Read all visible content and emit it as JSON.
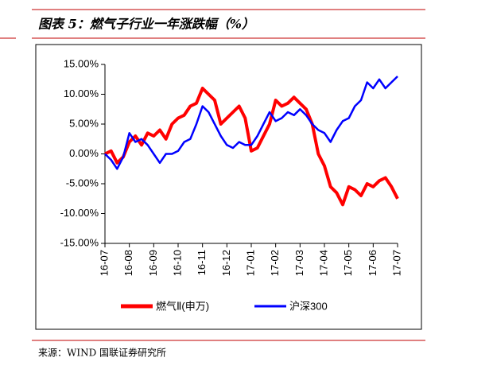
{
  "title": "图表 5：燃气子行业一年涨跌幅（%）",
  "source": "来源：WIND 国联证券研究所",
  "chart_data": {
    "type": "line",
    "x": [
      0,
      0.25,
      0.5,
      0.75,
      1,
      1.25,
      1.5,
      1.75,
      2,
      2.25,
      2.5,
      2.75,
      3,
      3.25,
      3.5,
      3.75,
      4,
      4.25,
      4.5,
      4.75,
      5,
      5.25,
      5.5,
      5.75,
      6,
      6.25,
      6.5,
      6.75,
      7,
      7.25,
      7.5,
      7.75,
      8,
      8.25,
      8.5,
      8.75,
      9,
      9.25,
      9.5,
      9.75,
      10,
      10.25,
      10.5,
      10.75,
      11,
      11.25,
      11.5,
      11.75,
      12
    ],
    "series": [
      {
        "name": "燃气Ⅱ(申万)",
        "color": "#ff0000",
        "values": [
          0,
          0.5,
          -1.5,
          -0.5,
          2,
          3,
          1.5,
          3.5,
          3,
          4,
          2.5,
          5,
          6,
          6.5,
          8,
          8.5,
          11,
          10,
          9,
          5,
          6,
          7,
          8,
          6,
          0.5,
          1,
          3,
          5,
          9,
          8,
          8.5,
          9.5,
          8.5,
          7.5,
          5,
          0,
          -2,
          -5.5,
          -6.5,
          -8.5,
          -5.5,
          -6,
          -7,
          -5,
          -5.5,
          -4.5,
          -4,
          -5.5,
          -7.5
        ]
      },
      {
        "name": "沪深300",
        "color": "#0000ff",
        "values": [
          0,
          -1,
          -2.5,
          -0.5,
          3.5,
          2,
          2.5,
          1.5,
          0,
          -1.5,
          0,
          0,
          0.5,
          2,
          2.5,
          5,
          8,
          7,
          5,
          3,
          1.5,
          1,
          2,
          1.5,
          1.5,
          3,
          5,
          7,
          5.5,
          6,
          7,
          6.5,
          7.5,
          6.5,
          5,
          4,
          3.5,
          2,
          4,
          5.5,
          6,
          8,
          9,
          12,
          11,
          12.5,
          11,
          12,
          13
        ]
      }
    ],
    "xlim": [
      0,
      12
    ],
    "xticks": [
      {
        "value": 0,
        "label": "16-07"
      },
      {
        "value": 1,
        "label": "16-08"
      },
      {
        "value": 2,
        "label": "16-09"
      },
      {
        "value": 3,
        "label": "16-10"
      },
      {
        "value": 4,
        "label": "16-11"
      },
      {
        "value": 5,
        "label": "16-12"
      },
      {
        "value": 6,
        "label": "17-01"
      },
      {
        "value": 7,
        "label": "17-02"
      },
      {
        "value": 8,
        "label": "17-03"
      },
      {
        "value": 9,
        "label": "17-04"
      },
      {
        "value": 10,
        "label": "17-05"
      },
      {
        "value": 11,
        "label": "17-06"
      },
      {
        "value": 12,
        "label": "17-07"
      }
    ],
    "ylim": [
      -15,
      15
    ],
    "yticks": [
      {
        "value": 15,
        "label": "15.00%"
      },
      {
        "value": 10,
        "label": "10.00%"
      },
      {
        "value": 5,
        "label": "5.00%"
      },
      {
        "value": 0,
        "label": "0.00%"
      },
      {
        "value": -5,
        "label": "-5.00%"
      },
      {
        "value": -10,
        "label": "-10.00%"
      },
      {
        "value": -15,
        "label": "-15.00%"
      }
    ]
  }
}
